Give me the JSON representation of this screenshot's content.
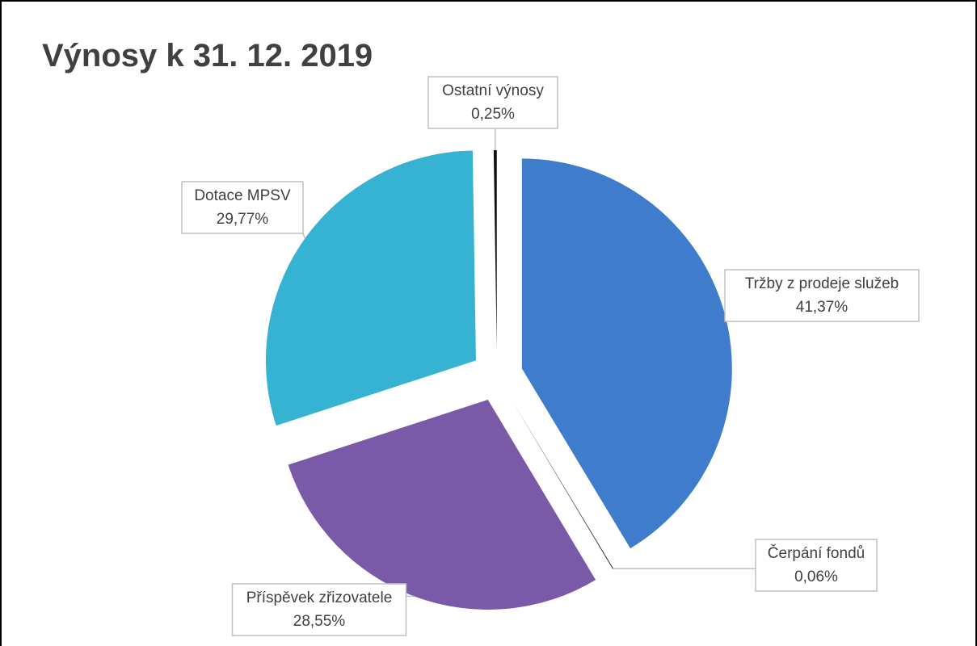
{
  "chart_data": {
    "type": "pie",
    "title": "Výnosy k 31. 12. 2019",
    "categories": [
      "Tržby z prodeje služeb",
      "Čerpání fondů",
      "Příspěvek zřizovatele",
      "Dotace MPSV",
      "Ostatní výnosy"
    ],
    "values": [
      41.37,
      0.06,
      28.55,
      29.77,
      0.25
    ],
    "value_labels": [
      "41,37%",
      "0,06%",
      "28,55%",
      "29,77%",
      "0,25%"
    ],
    "colors": [
      "#3f7dcc",
      "#1a1a1a",
      "#7a59a8",
      "#36b3d3",
      "#111111"
    ]
  }
}
